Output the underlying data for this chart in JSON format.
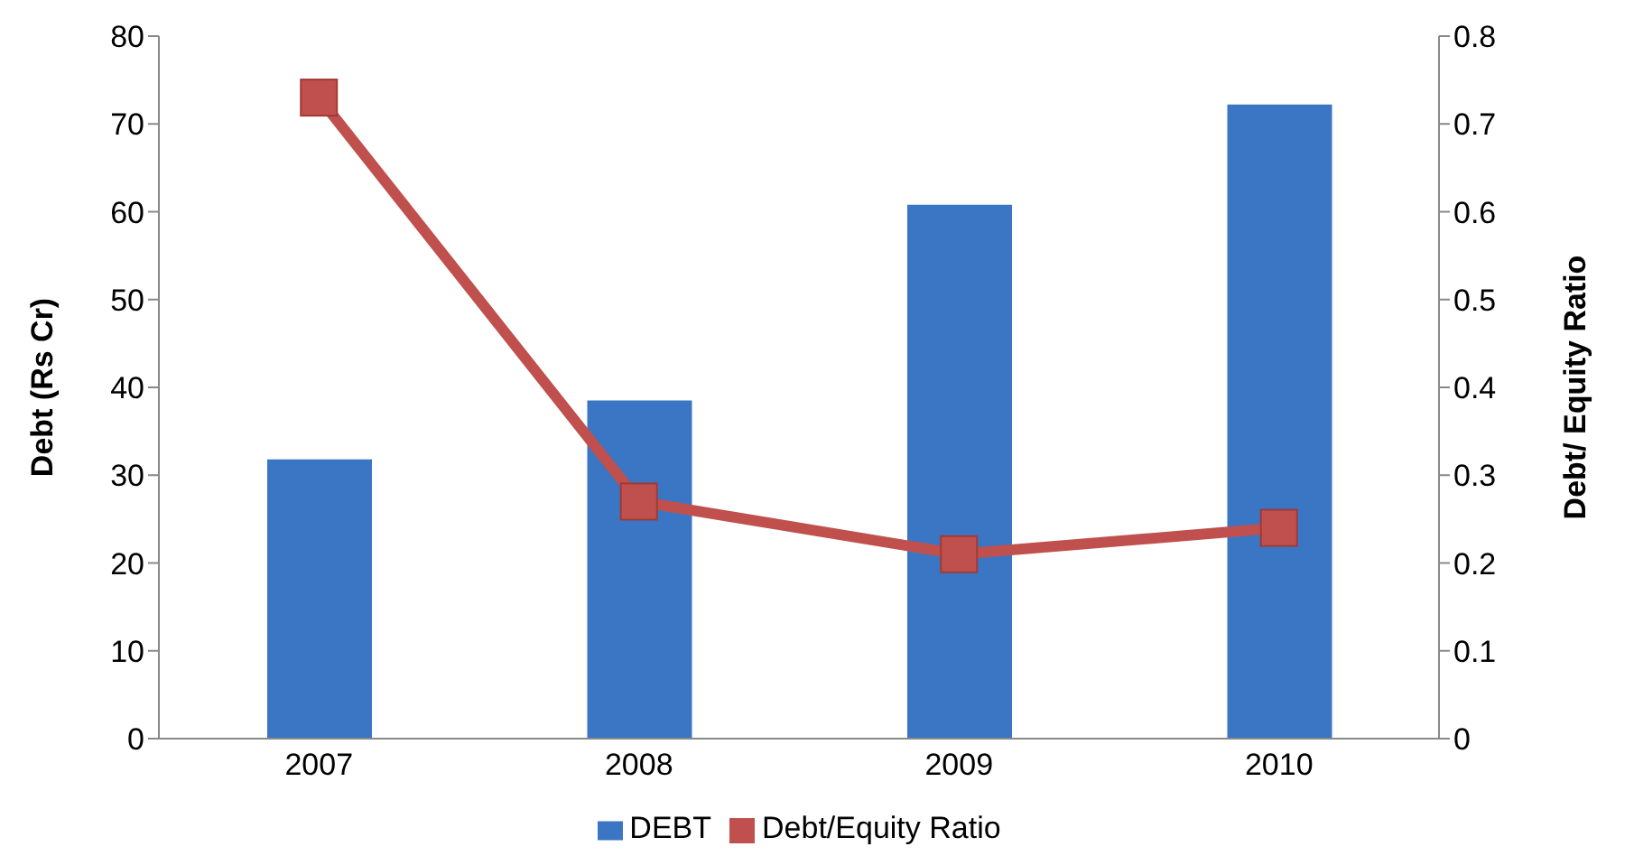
{
  "chart_data": {
    "type": "bar",
    "categories": [
      "2007",
      "2008",
      "2009",
      "2010"
    ],
    "series": [
      {
        "name": "DEBT",
        "color": "#3a76c4",
        "values": [
          31.8,
          38.5,
          60.8,
          72.2
        ]
      },
      {
        "name": "Debt/Equity Ratio",
        "type": "line",
        "axis": "y2",
        "color": "#c0504d",
        "values": [
          0.73,
          0.27,
          0.21,
          0.24
        ]
      }
    ],
    "ylabel": "Debt (Rs Cr)",
    "y2label": "Debt/ Equity Ratio",
    "ylim": [
      0,
      80
    ],
    "yticks": [
      0,
      10,
      20,
      30,
      40,
      50,
      60,
      70,
      80
    ],
    "y2lim": [
      0,
      0.8
    ],
    "y2ticks": [
      0,
      0.1,
      0.2,
      0.3,
      0.4,
      0.5,
      0.6,
      0.7,
      0.8
    ],
    "legend": "bottom",
    "marker": "square"
  }
}
